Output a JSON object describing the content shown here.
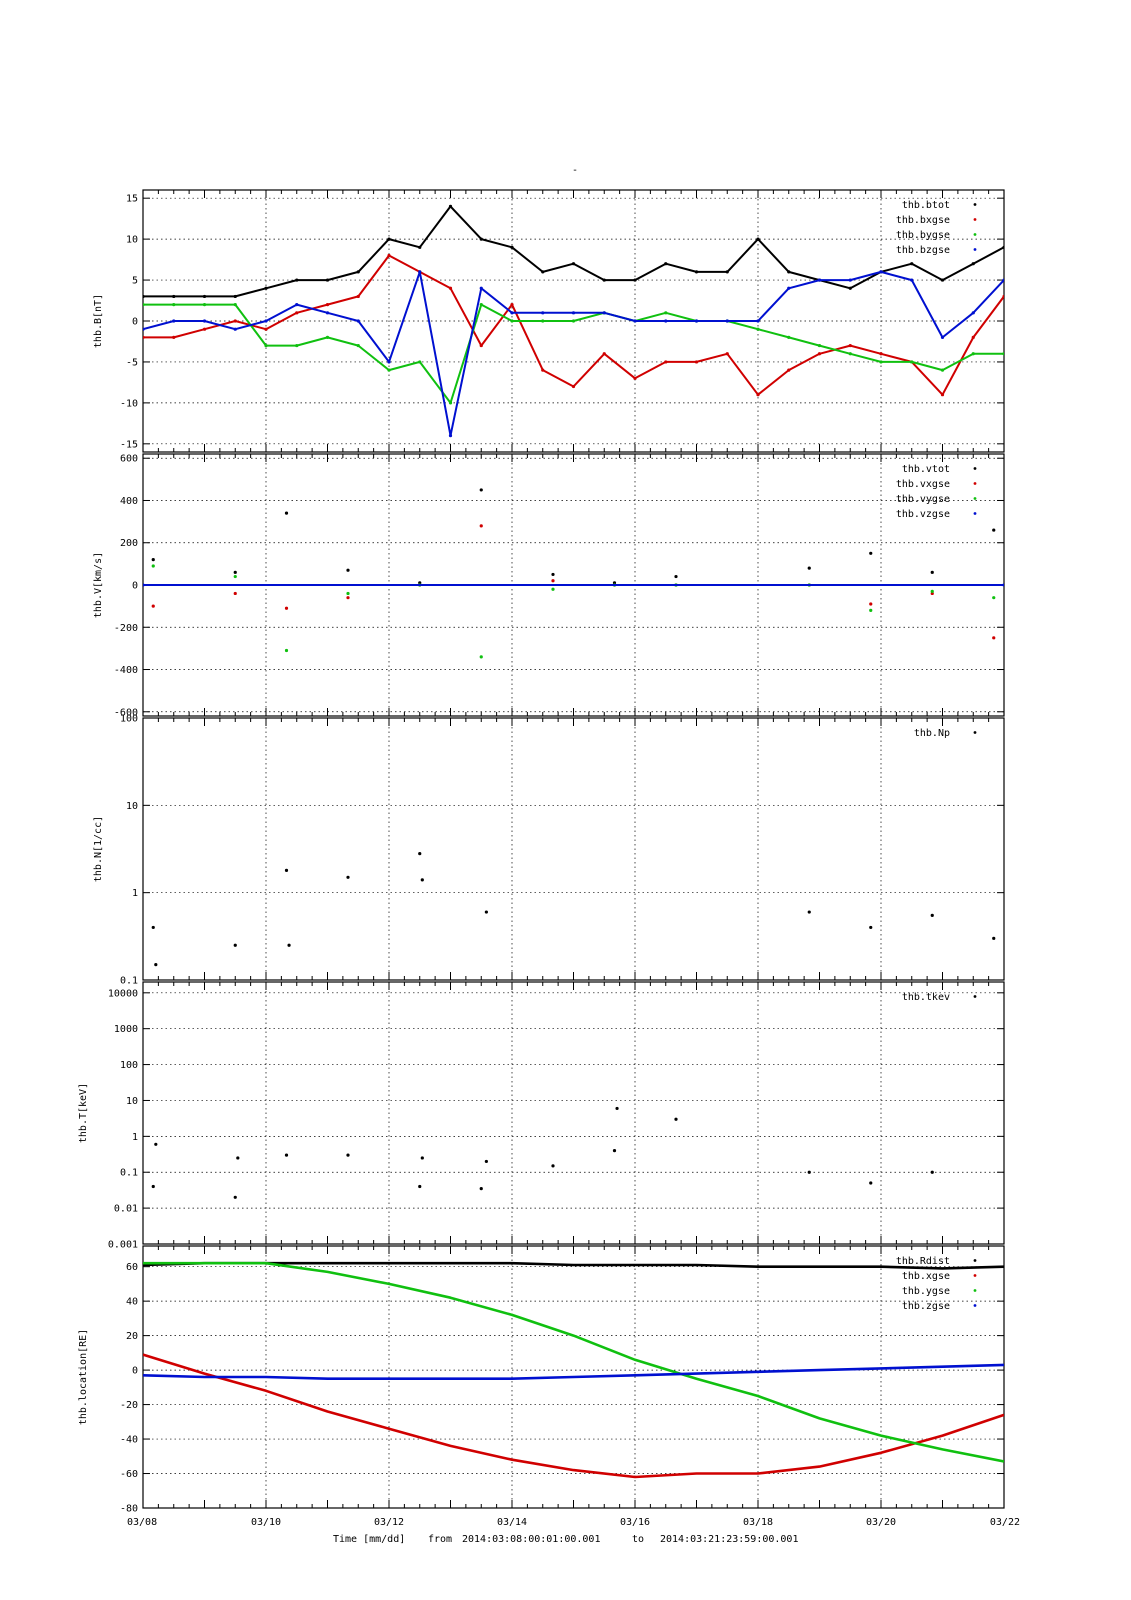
{
  "figure": {
    "title": "",
    "top_mark": "-",
    "footer": {
      "time_label": "Time [mm/dd]",
      "from_label": "from",
      "start": "2014:03:08:00:01:00.001",
      "to_label": "to",
      "end": "2014:03:21:23:59:00.001"
    }
  },
  "chart_data": [
    {
      "type": "scatter",
      "panel": "B",
      "ylabel": "thb.B[nT]",
      "ylim": [
        -16,
        16
      ],
      "y_ticks": [
        -15,
        -10,
        -5,
        0,
        5,
        10,
        15
      ],
      "x_range_days": [
        "03/08",
        "03/22"
      ],
      "x_tick_labels": [
        "03/08",
        "03/10",
        "03/12",
        "03/14",
        "03/16",
        "03/18",
        "03/20",
        "03/22"
      ],
      "grid": true,
      "legend_position": "top-right",
      "series": [
        {
          "name": "thb.btot",
          "color": "#000000",
          "x": [
            "03/08",
            "03/08 12h",
            "03/09",
            "03/09 12h",
            "03/10",
            "03/10 12h",
            "03/11",
            "03/11 12h",
            "03/12",
            "03/12 12h",
            "03/13",
            "03/13 12h",
            "03/14",
            "03/14 12h",
            "03/15",
            "03/15 12h",
            "03/16",
            "03/16 12h",
            "03/17",
            "03/17 12h",
            "03/18",
            "03/18 12h",
            "03/19",
            "03/19 12h",
            "03/20",
            "03/20 12h",
            "03/21",
            "03/21 12h",
            "03/22"
          ],
          "values": [
            3,
            3,
            3,
            3,
            4,
            5,
            5,
            6,
            10,
            9,
            14,
            10,
            9,
            6,
            7,
            5,
            5,
            7,
            6,
            6,
            10,
            6,
            5,
            4,
            6,
            7,
            5,
            7,
            9
          ]
        },
        {
          "name": "thb.bxgse",
          "color": "#d00000",
          "x": [
            "03/08",
            "03/08 12h",
            "03/09",
            "03/09 12h",
            "03/10",
            "03/10 12h",
            "03/11",
            "03/11 12h",
            "03/12",
            "03/12 12h",
            "03/13",
            "03/13 12h",
            "03/14",
            "03/14 12h",
            "03/15",
            "03/15 12h",
            "03/16",
            "03/16 12h",
            "03/17",
            "03/17 12h",
            "03/18",
            "03/18 12h",
            "03/19",
            "03/19 12h",
            "03/20",
            "03/20 12h",
            "03/21",
            "03/21 12h",
            "03/22"
          ],
          "values": [
            -2,
            -2,
            -1,
            0,
            -1,
            1,
            2,
            3,
            8,
            6,
            4,
            -3,
            2,
            -6,
            -8,
            -4,
            -7,
            -5,
            -5,
            -4,
            -9,
            -6,
            -4,
            -3,
            -4,
            -5,
            -9,
            -2,
            3
          ]
        },
        {
          "name": "thb.bygse",
          "color": "#10c010",
          "x": [
            "03/08",
            "03/08 12h",
            "03/09",
            "03/09 12h",
            "03/10",
            "03/10 12h",
            "03/11",
            "03/11 12h",
            "03/12",
            "03/12 12h",
            "03/13",
            "03/13 12h",
            "03/14",
            "03/14 12h",
            "03/15",
            "03/15 12h",
            "03/16",
            "03/16 12h",
            "03/17",
            "03/17 12h",
            "03/18",
            "03/18 12h",
            "03/19",
            "03/19 12h",
            "03/20",
            "03/20 12h",
            "03/21",
            "03/21 12h",
            "03/22"
          ],
          "values": [
            2,
            2,
            2,
            2,
            -3,
            -3,
            -2,
            -3,
            -6,
            -5,
            -10,
            2,
            0,
            0,
            0,
            1,
            0,
            1,
            0,
            0,
            -1,
            -2,
            -3,
            -4,
            -5,
            -5,
            -6,
            -4,
            -4
          ]
        },
        {
          "name": "thb.bzgse",
          "color": "#0010d0",
          "x": [
            "03/08",
            "03/08 12h",
            "03/09",
            "03/09 12h",
            "03/10",
            "03/10 12h",
            "03/11",
            "03/11 12h",
            "03/12",
            "03/12 12h",
            "03/13",
            "03/13 12h",
            "03/14",
            "03/14 12h",
            "03/15",
            "03/15 12h",
            "03/16",
            "03/16 12h",
            "03/17",
            "03/17 12h",
            "03/18",
            "03/18 12h",
            "03/19",
            "03/19 12h",
            "03/20",
            "03/20 12h",
            "03/21",
            "03/21 12h",
            "03/22"
          ],
          "values": [
            -1,
            0,
            0,
            -1,
            0,
            2,
            1,
            0,
            -5,
            6,
            -14,
            4,
            1,
            1,
            1,
            1,
            0,
            0,
            0,
            0,
            0,
            4,
            5,
            5,
            6,
            5,
            -2,
            1,
            5
          ]
        }
      ]
    },
    {
      "type": "scatter",
      "panel": "V",
      "ylabel": "thb.V[km/s]",
      "ylim": [
        -620,
        620
      ],
      "y_ticks": [
        -600,
        -400,
        -200,
        0,
        200,
        400,
        600
      ],
      "grid": true,
      "legend_position": "top-right",
      "series": [
        {
          "name": "thb.vtot",
          "color": "#000000",
          "x": [
            "03/08 04h",
            "03/09 12h",
            "03/10 08h",
            "03/11 08h",
            "03/12 12h",
            "03/13 12h",
            "03/14 16h",
            "03/15 16h",
            "03/16 16h",
            "03/18 20h",
            "03/19 20h",
            "03/20 20h",
            "03/21 20h"
          ],
          "values": [
            120,
            60,
            340,
            70,
            10,
            450,
            50,
            10,
            40,
            80,
            150,
            60,
            260
          ]
        },
        {
          "name": "thb.vxgse",
          "color": "#d00000",
          "x": [
            "03/08 04h",
            "03/09 12h",
            "03/10 08h",
            "03/11 08h",
            "03/12 12h",
            "03/13 12h",
            "03/14 16h",
            "03/15 16h",
            "03/16 16h",
            "03/18 20h",
            "03/19 20h",
            "03/20 20h",
            "03/21 20h"
          ],
          "values": [
            -100,
            -40,
            -110,
            -60,
            0,
            280,
            20,
            0,
            0,
            0,
            -90,
            -40,
            -250
          ]
        },
        {
          "name": "thb.vygse",
          "color": "#10c010",
          "x": [
            "03/08 04h",
            "03/09 12h",
            "03/10 08h",
            "03/11 08h",
            "03/12 12h",
            "03/13 12h",
            "03/14 16h",
            "03/15 16h",
            "03/16 16h",
            "03/18 20h",
            "03/19 20h",
            "03/20 20h",
            "03/21 20h"
          ],
          "values": [
            90,
            40,
            -310,
            -40,
            0,
            -340,
            -20,
            0,
            0,
            0,
            -120,
            -30,
            -60
          ]
        },
        {
          "name": "thb.vzgse",
          "color": "#0010d0",
          "x": [
            "03/08",
            "03/22"
          ],
          "values": [
            0,
            0
          ]
        }
      ]
    },
    {
      "type": "scatter",
      "panel": "N",
      "ylabel": "thb.N[1/cc]",
      "ylog": true,
      "ylim": [
        0.1,
        100
      ],
      "y_tick_labels": [
        "0.1",
        "1",
        "10",
        "100"
      ],
      "grid": true,
      "legend_position": "top-right",
      "series": [
        {
          "name": "thb.Np",
          "color": "#000000",
          "x": [
            "03/08 04h",
            "03/08 05h",
            "03/09 12h",
            "03/10 08h",
            "03/10 09h",
            "03/11 08h",
            "03/12 12h",
            "03/12 13h",
            "03/13 14h",
            "03/18 20h",
            "03/19 20h",
            "03/20 20h",
            "03/21 20h"
          ],
          "values": [
            0.4,
            0.15,
            0.25,
            1.8,
            0.25,
            1.5,
            2.8,
            1.4,
            0.6,
            0.6,
            0.4,
            0.55,
            0.3
          ]
        }
      ]
    },
    {
      "type": "scatter",
      "panel": "T",
      "ylabel": "thb.T[keV]",
      "ylog": true,
      "ylim": [
        0.001,
        20000
      ],
      "y_tick_labels": [
        "0.001",
        "0.01",
        "0.1",
        "1",
        "10",
        "100",
        "1000",
        "10000"
      ],
      "grid": true,
      "legend_position": "top-right",
      "series": [
        {
          "name": "thb.tkev",
          "color": "#000000",
          "x": [
            "03/08 04h",
            "03/08 05h",
            "03/09 12h",
            "03/09 13h",
            "03/10 08h",
            "03/11 08h",
            "03/12 12h",
            "03/12 13h",
            "03/13 12h",
            "03/13 14h",
            "03/14 16h",
            "03/15 16h",
            "03/15 17h",
            "03/16 16h",
            "03/18 20h",
            "03/19 20h",
            "03/20 20h"
          ],
          "values": [
            0.04,
            0.6,
            0.02,
            0.25,
            0.3,
            0.3,
            0.04,
            0.25,
            0.035,
            0.2,
            0.15,
            0.4,
            6,
            3,
            0.1,
            0.05,
            0.1
          ]
        }
      ]
    },
    {
      "type": "line",
      "panel": "location",
      "ylabel": "thb.location[RE]",
      "ylim": [
        -80,
        72
      ],
      "y_ticks": [
        -80,
        -60,
        -40,
        -20,
        0,
        20,
        40,
        60
      ],
      "grid": true,
      "legend_position": "top-right",
      "series": [
        {
          "name": "thb.Rdist",
          "color": "#000000",
          "x": [
            "03/08",
            "03/09",
            "03/10",
            "03/11",
            "03/12",
            "03/13",
            "03/14",
            "03/15",
            "03/16",
            "03/17",
            "03/18",
            "03/19",
            "03/20",
            "03/21",
            "03/22"
          ],
          "values": [
            61,
            62,
            62,
            62,
            62,
            62,
            62,
            61,
            61,
            61,
            60,
            60,
            60,
            59,
            60
          ]
        },
        {
          "name": "thb.xgse",
          "color": "#d00000",
          "x": [
            "03/08",
            "03/09",
            "03/10",
            "03/11",
            "03/12",
            "03/13",
            "03/14",
            "03/15",
            "03/16",
            "03/17",
            "03/18",
            "03/19",
            "03/20",
            "03/21",
            "03/22"
          ],
          "values": [
            9,
            -2,
            -12,
            -24,
            -34,
            -44,
            -52,
            -58,
            -62,
            -60,
            -60,
            -56,
            -48,
            -38,
            -26
          ]
        },
        {
          "name": "thb.ygse",
          "color": "#10c010",
          "x": [
            "03/08",
            "03/09",
            "03/10",
            "03/11",
            "03/12",
            "03/13",
            "03/14",
            "03/15",
            "03/16",
            "03/17",
            "03/18",
            "03/19",
            "03/20",
            "03/21",
            "03/22"
          ],
          "values": [
            62,
            62,
            62,
            57,
            50,
            42,
            32,
            20,
            6,
            -5,
            -15,
            -28,
            -38,
            -46,
            -53
          ]
        },
        {
          "name": "thb.zgse",
          "color": "#0010d0",
          "x": [
            "03/08",
            "03/09",
            "03/10",
            "03/11",
            "03/12",
            "03/13",
            "03/14",
            "03/15",
            "03/16",
            "03/17",
            "03/18",
            "03/19",
            "03/20",
            "03/21",
            "03/22"
          ],
          "values": [
            -3,
            -4,
            -4,
            -5,
            -5,
            -5,
            -5,
            -4,
            -3,
            -2,
            -1,
            0,
            1,
            2,
            3
          ]
        }
      ]
    }
  ]
}
